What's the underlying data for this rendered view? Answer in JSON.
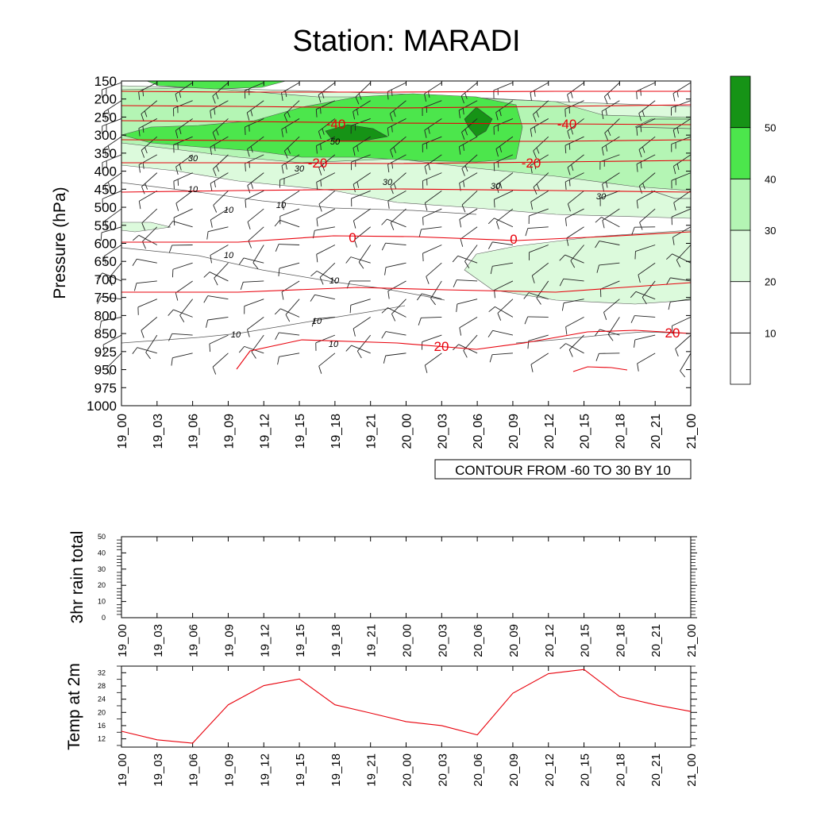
{
  "title": "Station: MARADI",
  "chart_data": [
    {
      "type": "heatmap",
      "subtype": "time-pressure cross-section with wind barbs and temperature contours",
      "title": "Station: MARADI",
      "ylabel": "Pressure (hPa)",
      "xlabel": "",
      "x": [
        "19_00",
        "19_03",
        "19_06",
        "19_09",
        "19_12",
        "19_15",
        "19_18",
        "19_21",
        "20_00",
        "20_03",
        "20_06",
        "20_09",
        "20_12",
        "20_15",
        "20_18",
        "20_21",
        "21_00"
      ],
      "pressure_levels": [
        150,
        200,
        250,
        300,
        350,
        400,
        450,
        500,
        550,
        600,
        650,
        700,
        750,
        800,
        850,
        925,
        950,
        975,
        1000
      ],
      "y_tick_labels": [
        "150",
        "200",
        "250",
        "300",
        "350",
        "400",
        "450",
        "500",
        "550",
        "600",
        "650",
        "700",
        "750",
        "800",
        "850",
        "925",
        "950",
        "975",
        "1000"
      ],
      "shaded_field_contours": [
        "10",
        "30",
        "30",
        "30",
        "30",
        "10",
        "10",
        "10",
        "10",
        "10",
        "10",
        "10",
        "30",
        "50"
      ],
      "temperature_contour_labels": [
        "-40",
        "-40",
        "-20",
        "-20",
        "0",
        "0",
        "20",
        "20"
      ],
      "contour_info": "CONTOUR FROM -60 TO 30 BY 10",
      "colorbar": {
        "levels": [
          "10",
          "20",
          "30",
          "40",
          "50"
        ],
        "colors": [
          "#ffffff",
          "#ffffff",
          "#dcfadc",
          "#b4f5b4",
          "#4ce64c",
          "#169316"
        ]
      }
    },
    {
      "type": "line",
      "ylabel": "3hr rain total",
      "x": [
        "19_00",
        "19_03",
        "19_06",
        "19_09",
        "19_12",
        "19_15",
        "19_18",
        "19_21",
        "20_00",
        "20_03",
        "20_06",
        "20_09",
        "20_12",
        "20_15",
        "20_18",
        "20_21",
        "21_00"
      ],
      "ylim": [
        0,
        50
      ],
      "y_ticks": [
        "0",
        "10",
        "20",
        "30",
        "40",
        "50"
      ],
      "values": [
        0,
        0,
        0,
        0,
        0,
        0,
        0,
        0,
        0,
        0,
        0,
        0,
        0,
        0,
        0,
        0,
        0
      ]
    },
    {
      "type": "line",
      "ylabel": "Temp at 2m",
      "x": [
        "19_00",
        "19_03",
        "19_06",
        "19_09",
        "19_12",
        "19_15",
        "19_18",
        "19_21",
        "20_00",
        "20_03",
        "20_06",
        "20_09",
        "20_12",
        "20_15",
        "20_18",
        "20_21",
        "21_00"
      ],
      "ylim": [
        9.5,
        34
      ],
      "y_ticks": [
        "12",
        "16",
        "20",
        "24",
        "28",
        "32"
      ],
      "values": [
        14.3,
        11.7,
        10.7,
        22.3,
        28.1,
        30.1,
        22.3,
        19.8,
        17.2,
        16.0,
        13.2,
        25.8,
        31.7,
        33.0,
        24.8,
        22.3,
        20.3
      ],
      "line_color": "#e8000b"
    }
  ]
}
